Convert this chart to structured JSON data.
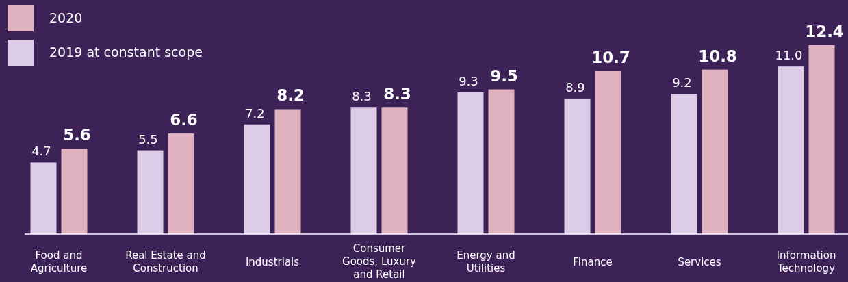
{
  "chart_data": {
    "type": "bar",
    "categories": [
      "Food and Agriculture",
      "Real Estate and Construction",
      "Industrials",
      "Consumer Goods, Luxury and Retail",
      "Energy and Utilities",
      "Finance",
      "Services",
      "Information Technology"
    ],
    "series": [
      {
        "name": "2019 at constant scope",
        "color": "#dccce8",
        "values": [
          4.7,
          5.5,
          7.2,
          8.3,
          9.3,
          8.9,
          9.2,
          11.0
        ],
        "value_labels": [
          "4.7",
          "5.5",
          "7.2",
          "8.3",
          "9.3",
          "8.9",
          "9.2",
          "11.0"
        ]
      },
      {
        "name": "2020",
        "color": "#e0b2c0",
        "values": [
          5.6,
          6.6,
          8.2,
          8.3,
          9.5,
          10.7,
          10.8,
          12.4
        ],
        "value_labels": [
          "5.6",
          "6.6",
          "8.2",
          "8.3",
          "9.5",
          "10.7",
          "10.8",
          "12.4"
        ]
      }
    ],
    "legend": "top left"
  }
}
